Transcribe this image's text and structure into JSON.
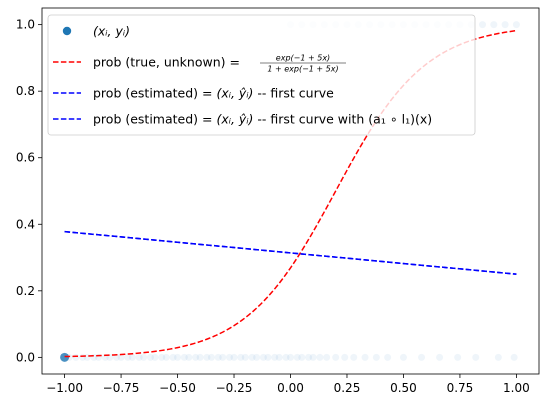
{
  "chart_data": {
    "type": "line",
    "xlim": [
      -1.1,
      1.1
    ],
    "ylim": [
      -0.05,
      1.05
    ],
    "x_ticks": [
      -1.0,
      -0.75,
      -0.5,
      -0.25,
      0.0,
      0.25,
      0.5,
      0.75,
      1.0
    ],
    "x_tick_labels": [
      "−1.00",
      "−0.75",
      "−0.50",
      "−0.25",
      "0.00",
      "0.25",
      "0.50",
      "0.75",
      "1.00"
    ],
    "y_ticks": [
      0.0,
      0.2,
      0.4,
      0.6,
      0.8,
      1.0
    ],
    "y_tick_labels": [
      "0.0",
      "0.2",
      "0.4",
      "0.6",
      "0.8",
      "1.0"
    ],
    "grid": false,
    "legend_position": "top-left",
    "series": [
      {
        "name": "(x_i, y_i)",
        "kind": "scatter",
        "color": "#1f77b4",
        "points": [
          [
            -1.0,
            0
          ],
          [
            -0.98,
            0
          ],
          [
            -0.95,
            0
          ],
          [
            -0.92,
            0
          ],
          [
            -0.9,
            0
          ],
          [
            -0.87,
            0
          ],
          [
            -0.85,
            0
          ],
          [
            -0.82,
            0
          ],
          [
            -0.8,
            0
          ],
          [
            -0.77,
            0
          ],
          [
            -0.75,
            0
          ],
          [
            -0.72,
            0
          ],
          [
            -0.7,
            0
          ],
          [
            -0.67,
            0
          ],
          [
            -0.65,
            0
          ],
          [
            -0.62,
            0
          ],
          [
            -0.6,
            0
          ],
          [
            -0.57,
            0
          ],
          [
            -0.55,
            0
          ],
          [
            -0.52,
            0
          ],
          [
            -0.5,
            0
          ],
          [
            -0.47,
            0
          ],
          [
            -0.45,
            0
          ],
          [
            -0.42,
            0
          ],
          [
            -0.4,
            0
          ],
          [
            -0.37,
            0
          ],
          [
            -0.35,
            0
          ],
          [
            -0.32,
            0
          ],
          [
            -0.3,
            0
          ],
          [
            -0.27,
            0
          ],
          [
            -0.25,
            0
          ],
          [
            -0.22,
            0
          ],
          [
            -0.2,
            0
          ],
          [
            -0.17,
            0
          ],
          [
            -0.15,
            0
          ],
          [
            -0.12,
            0
          ],
          [
            -0.1,
            0
          ],
          [
            -0.07,
            0
          ],
          [
            -0.05,
            0
          ],
          [
            -0.02,
            0
          ],
          [
            0.0,
            0
          ],
          [
            0.03,
            0
          ],
          [
            0.05,
            0
          ],
          [
            0.08,
            0
          ],
          [
            0.1,
            0
          ],
          [
            0.13,
            0
          ],
          [
            0.16,
            0
          ],
          [
            0.2,
            0
          ],
          [
            0.24,
            0
          ],
          [
            0.28,
            0
          ],
          [
            0.33,
            0
          ],
          [
            0.38,
            0
          ],
          [
            0.43,
            0
          ],
          [
            0.5,
            0
          ],
          [
            0.58,
            0
          ],
          [
            0.66,
            0
          ],
          [
            0.74,
            0
          ],
          [
            0.82,
            0
          ],
          [
            0.92,
            0
          ],
          [
            0.99,
            0
          ],
          [
            0.0,
            1
          ],
          [
            0.05,
            1
          ],
          [
            0.1,
            1
          ],
          [
            0.15,
            1
          ],
          [
            0.2,
            1
          ],
          [
            0.25,
            1
          ],
          [
            0.3,
            1
          ],
          [
            0.35,
            1
          ],
          [
            0.4,
            1
          ],
          [
            0.45,
            1
          ],
          [
            0.5,
            1
          ],
          [
            0.55,
            1
          ],
          [
            0.6,
            1
          ],
          [
            0.65,
            1
          ],
          [
            0.7,
            1
          ],
          [
            0.75,
            1
          ],
          [
            0.8,
            1
          ],
          [
            0.85,
            1
          ],
          [
            0.9,
            1
          ],
          [
            0.95,
            1
          ],
          [
            1.0,
            1
          ]
        ]
      },
      {
        "name": "prob (true, unknown)",
        "kind": "line",
        "style": "dashed",
        "color": "#ff0000",
        "formula": "exp(-1 + 5x) / (1 + exp(-1 + 5x))",
        "x_range": [
          -1.0,
          1.0
        ]
      },
      {
        "name": "prob (estimated) -- first curve",
        "kind": "line",
        "style": "dashed",
        "color": "#0000ff",
        "x": [
          -1.0,
          1.0
        ],
        "y": [
          0.378,
          0.25
        ]
      },
      {
        "name": "prob (estimated) -- first curve with (a1 ∘ l1)(x)",
        "kind": "line",
        "style": "dashed",
        "color": "#0000ff",
        "x": [
          -1.0,
          1.0
        ],
        "y": [
          0.378,
          0.25
        ]
      }
    ],
    "legend": [
      {
        "prefix": "",
        "math": "(xᵢ, yᵢ)",
        "suffix": "",
        "marker": "dot",
        "color": "#1f77b4"
      },
      {
        "prefix": "prob (true, unknown) = ",
        "math": "",
        "suffix": "",
        "fraction": {
          "num": "exp(−1 + 5x)",
          "den": "1 + exp(−1 + 5x)"
        },
        "marker": "dash",
        "color": "#ff0000"
      },
      {
        "prefix": "prob (estimated) = ",
        "math": "(xᵢ, ŷᵢ)",
        "suffix": " -- first curve",
        "marker": "dash",
        "color": "#0000ff"
      },
      {
        "prefix": "prob (estimated) = ",
        "math": "(xᵢ, ŷᵢ)",
        "suffix": " -- first curve with (a₁ ∘ l₁)(x)",
        "marker": "dash",
        "color": "#0000ff"
      }
    ]
  }
}
